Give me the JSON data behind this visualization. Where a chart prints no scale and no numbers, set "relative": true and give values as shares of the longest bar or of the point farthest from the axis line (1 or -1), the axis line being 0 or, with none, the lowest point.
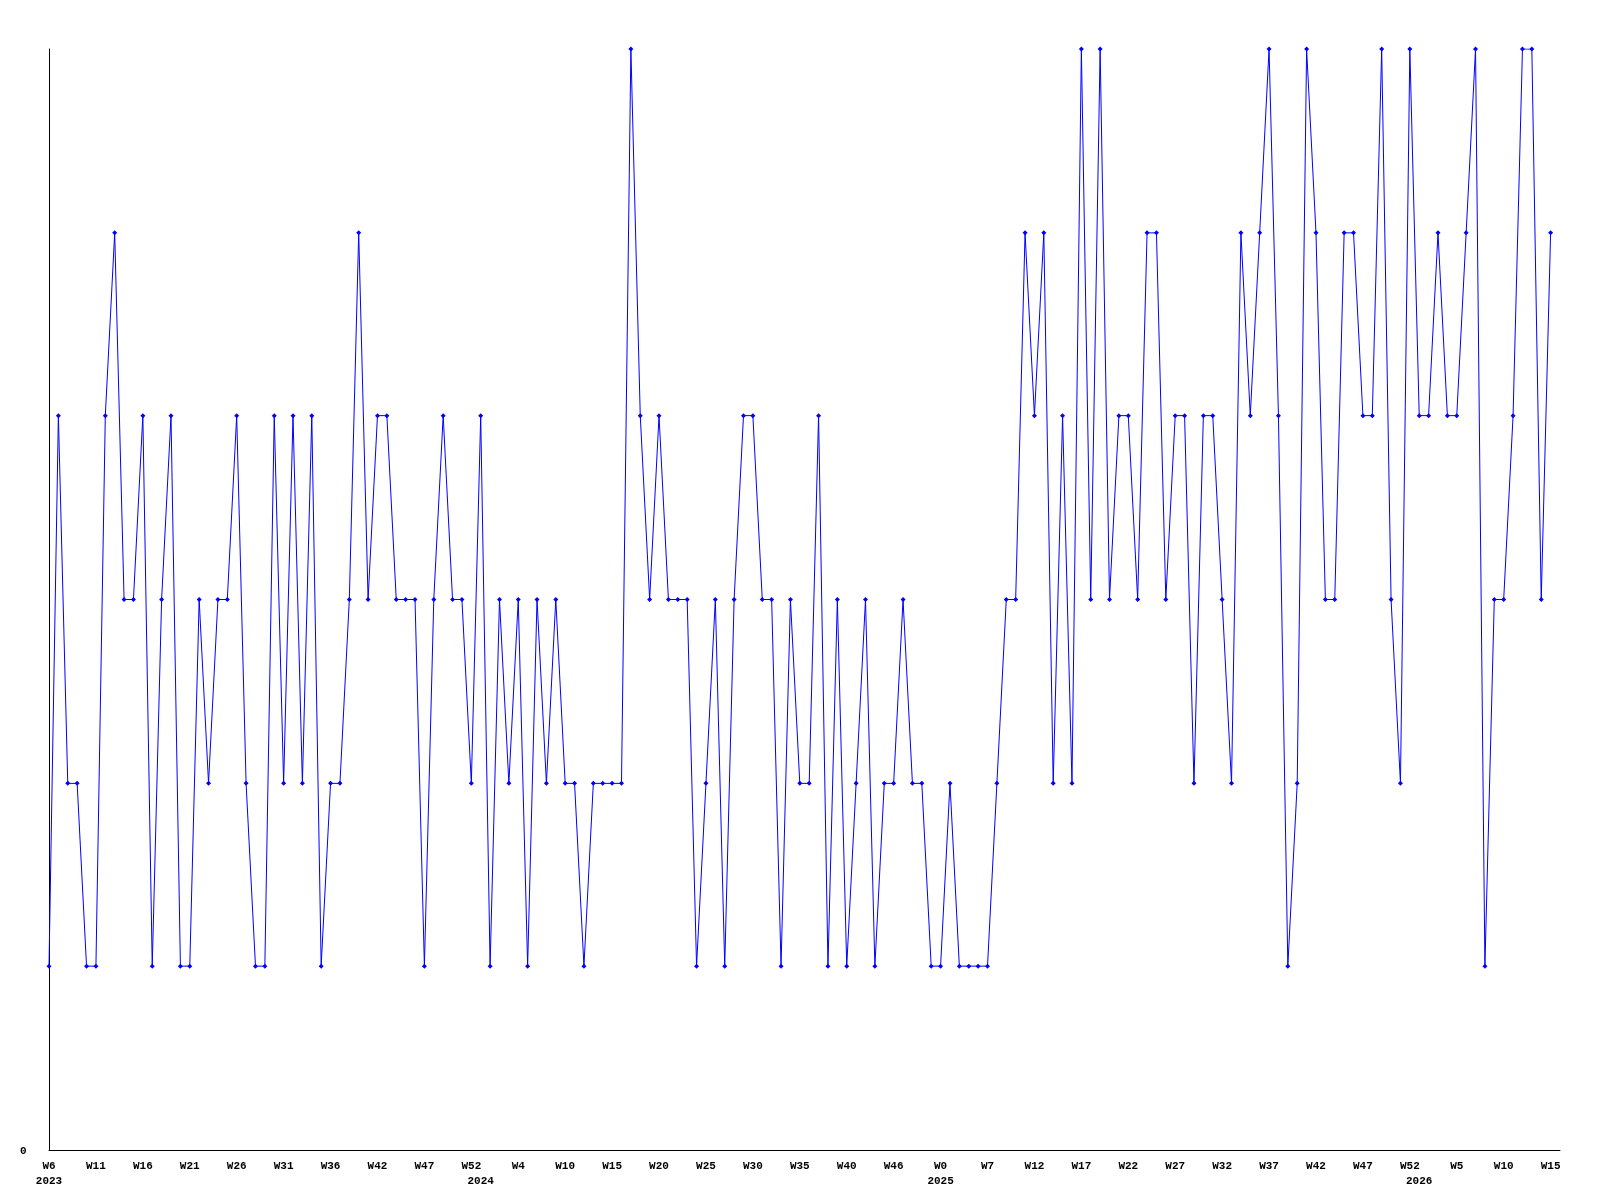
{
  "chart_data": {
    "type": "line",
    "relative": true,
    "marker": "diamond",
    "line_style": "solid",
    "grid": false,
    "annotations": [
      "0"
    ],
    "categories": [
      "W6\n2023",
      null,
      null,
      null,
      null,
      "W11",
      null,
      null,
      null,
      null,
      "W16",
      null,
      null,
      null,
      null,
      "W21",
      null,
      null,
      null,
      null,
      "W26",
      null,
      null,
      null,
      null,
      "W31",
      null,
      null,
      null,
      null,
      "W36",
      null,
      null,
      null,
      null,
      "W42",
      null,
      null,
      null,
      null,
      "W47",
      null,
      null,
      null,
      null,
      "W52",
      "\n2024",
      null,
      null,
      null,
      "W4",
      null,
      null,
      null,
      null,
      "W10",
      null,
      null,
      null,
      null,
      "W15",
      null,
      null,
      null,
      null,
      "W20",
      null,
      null,
      null,
      null,
      "W25",
      null,
      null,
      null,
      null,
      "W30",
      null,
      null,
      null,
      null,
      "W35",
      null,
      null,
      null,
      null,
      "W40",
      null,
      null,
      null,
      null,
      "W46",
      null,
      null,
      null,
      null,
      "W0\n2025",
      null,
      null,
      null,
      null,
      "W7",
      null,
      null,
      null,
      null,
      "W12",
      null,
      null,
      null,
      null,
      "W17",
      null,
      null,
      null,
      null,
      "W22",
      null,
      null,
      null,
      null,
      "W27",
      null,
      null,
      null,
      null,
      "W32",
      null,
      null,
      null,
      null,
      "W37",
      null,
      null,
      null,
      null,
      "W42",
      null,
      null,
      null,
      null,
      "W47",
      null,
      null,
      null,
      null,
      "W52",
      "\n2026",
      null,
      null,
      null,
      "W5",
      null,
      null,
      null,
      null,
      "W10",
      null,
      null,
      null,
      null,
      "W15",
      null
    ],
    "series": [
      {
        "color": "#0000ff",
        "values": [
          0.167,
          0.667,
          0.333,
          0.333,
          0.167,
          0.167,
          0.667,
          0.833,
          0.5,
          0.5,
          0.667,
          0.167,
          0.5,
          0.667,
          0.167,
          0.167,
          0.5,
          0.333,
          0.5,
          0.5,
          0.667,
          0.333,
          0.167,
          0.167,
          0.667,
          0.333,
          0.667,
          0.333,
          0.667,
          0.167,
          0.333,
          0.333,
          0.5,
          0.833,
          0.5,
          0.667,
          0.667,
          0.5,
          0.5,
          0.5,
          0.167,
          0.5,
          0.667,
          0.5,
          0.5,
          0.333,
          0.667,
          0.167,
          0.5,
          0.333,
          0.5,
          0.167,
          0.5,
          0.333,
          0.5,
          0.333,
          0.333,
          0.167,
          0.333,
          0.333,
          0.333,
          0.333,
          1,
          0.667,
          0.5,
          0.667,
          0.5,
          0.5,
          0.5,
          0.167,
          0.333,
          0.5,
          0.167,
          0.5,
          0.667,
          0.667,
          0.5,
          0.5,
          0.167,
          0.5,
          0.333,
          0.333,
          0.667,
          0.167,
          0.5,
          0.167,
          0.333,
          0.5,
          0.167,
          0.333,
          0.333,
          0.5,
          0.333,
          0.333,
          0.167,
          0.167,
          0.333,
          0.167,
          0.167,
          0.167,
          0.167,
          0.333,
          0.5,
          0.5,
          0.833,
          0.667,
          0.833,
          0.333,
          0.667,
          0.333,
          1,
          0.5,
          1,
          0.5,
          0.667,
          0.667,
          0.5,
          0.833,
          0.833,
          0.5,
          0.667,
          0.667,
          0.333,
          0.667,
          0.667,
          0.5,
          0.333,
          0.833,
          0.667,
          0.833,
          1,
          0.667,
          0.167,
          0.333,
          1,
          0.833,
          0.5,
          0.5,
          0.833,
          0.833,
          0.667,
          0.667,
          1,
          0.5,
          0.333,
          1,
          0.667,
          0.667,
          0.833,
          0.667,
          0.667,
          0.833,
          1,
          0.167,
          0.5,
          0.5,
          0.667,
          1,
          1,
          0.5,
          0.833,
          null
        ]
      }
    ]
  }
}
